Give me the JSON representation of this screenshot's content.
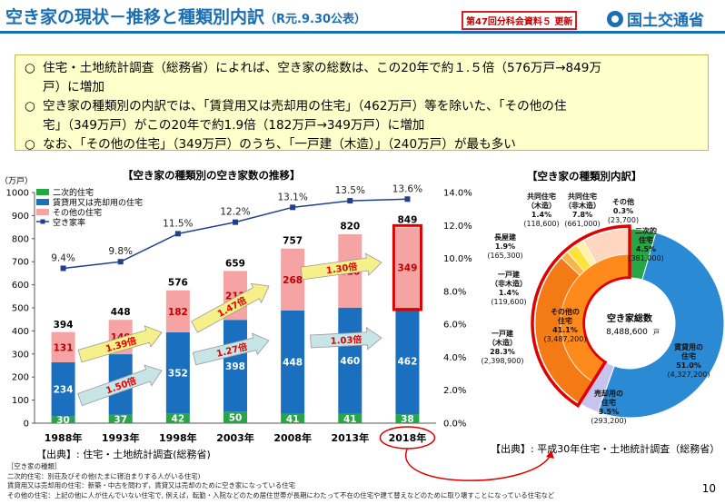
{
  "header": {
    "title": "空き家の現状－推移と種類別内訳",
    "title_note": "（R元.9.30公表）",
    "meeting_tag": "第47回分科会資料５ 更新",
    "org_name": "国土交通省"
  },
  "summary": {
    "mark": "○",
    "items": [
      {
        "line1": "住宅・土地統計調査（総務省）によれば、空き家の総数は、この20年で約１.５倍（576万戸→849万",
        "line2": "戸）に増加"
      },
      {
        "line1": "空き家の種類別の内訳では、「賃貸用又は売却用の住宅」（462万戸）等を除いた、「その他の住",
        "line2": "宅」（349万戸）がこの20年で約1.9倍（182万戸→349万戸）に増加"
      },
      {
        "line1": "なお、「その他の住宅」（349万戸）のうち、「一戸建（木造）」（240万戸）が最も多い",
        "line2": ""
      }
    ]
  },
  "left_chart": {
    "title": "【空き家の種類別の空き家数の推移】",
    "y_unit": "（万戸）",
    "source": "【出典】: 住宅・土地統計調査(総務省)"
  },
  "right_chart": {
    "title": "【空き家の種類別内訳】",
    "center_label": "空き家総数",
    "center_value": "8,488,600",
    "center_unit": "戸",
    "source": "【出典】: 平成30年住宅・土地統計調査（総務省）"
  },
  "notes": {
    "heading": "［空き家の種類］",
    "lines": [
      "二次的住宅：別荘及びその他(たまに寝泊まりする人がいる住宅)",
      "賃貸用又は売却用の住宅：新築・中古を問わず，賃貸又は売却のために空き家になっている住宅",
      "その他の住宅：上記の他に人が住んでいない住宅で, 例えば，転勤・入院などのため居住世帯が長期にわたって不在の住宅や建て替えなどのために取り壊すことになっている住宅など"
    ]
  },
  "page_number": "10",
  "colors": {
    "secondary": "#26a644",
    "rental": "#1a6fbe",
    "other": "#f6a3a3",
    "rate_line": "#1f3f8f",
    "title_blue": "#1a6fb4",
    "highlight_red": "#e00000",
    "arrow_yellow": "#f6f08a",
    "arrow_teal": "#c7e4e6"
  },
  "chart_data": [
    {
      "type": "bar",
      "stacked": true,
      "categories": [
        "1988年",
        "1993年",
        "1998年",
        "2003年",
        "2008年",
        "2013年",
        "2018年"
      ],
      "series": [
        {
          "name": "二次的住宅",
          "values": [
            30,
            37,
            42,
            50,
            41,
            41,
            38
          ],
          "color": "#26a644"
        },
        {
          "name": "賃貸用又は売却用の住宅",
          "values": [
            234,
            262,
            352,
            398,
            448,
            460,
            462
          ],
          "color": "#1a6fbe"
        },
        {
          "name": "その他の住宅",
          "values": [
            131,
            149,
            182,
            212,
            268,
            318,
            349
          ],
          "color": "#f6a3a3"
        }
      ],
      "totals": [
        394,
        448,
        576,
        659,
        757,
        820,
        849
      ],
      "line_series": {
        "name": "空き家率",
        "values": [
          9.4,
          9.8,
          11.5,
          12.2,
          13.1,
          13.5,
          13.6
        ],
        "labels": [
          "9.4%",
          "9.8%",
          "11.5%",
          "12.2%",
          "13.1%",
          "13.5%",
          "13.6%"
        ]
      },
      "ylim": [
        0,
        1000
      ],
      "yticks": [
        0,
        100,
        200,
        300,
        400,
        500,
        600,
        700,
        800,
        900,
        1000
      ],
      "y2lim": [
        0,
        14
      ],
      "y2ticks": [
        "0.0%",
        "2.0%",
        "4.0%",
        "6.0%",
        "8.0%",
        "10.0%",
        "12.0%",
        "14.0%"
      ],
      "annotations": [
        "1.50倍",
        "1.27倍",
        "1.03倍",
        "1.39倍",
        "1.47倍",
        "1.30倍"
      ],
      "legend": "top-left"
    },
    {
      "type": "pie",
      "labels": [
        "二次的住宅",
        "賃貸用の住宅",
        "売却用の住宅",
        "その他の住宅",
        "一戸建（木造）",
        "一戸建（非木造）",
        "長屋建",
        "共同住宅（木造）",
        "共同住宅（非木造）",
        "その他"
      ],
      "values": [
        381000,
        4327200,
        293200,
        3487200,
        2398900,
        119600,
        165300,
        118600,
        661000,
        23700
      ],
      "display": [
        {
          "name": "二次的住宅",
          "pct": "4.5%",
          "count": "(381,000)"
        },
        {
          "name": "賃貸用の住宅",
          "pct": "51.0%",
          "count": "(4,327,200)"
        },
        {
          "name": "売却用の住宅",
          "pct": "3.5%",
          "count": "(293,200)"
        },
        {
          "name": "その他の住宅",
          "pct": "41.1%",
          "count": "(3,487,200)"
        },
        {
          "name": "一戸建（木造）",
          "pct": "28.3%",
          "count": "(2,398,900)"
        },
        {
          "name": "一戸建（非木造）",
          "pct": "1.4%",
          "count": "(119,600)"
        },
        {
          "name": "長屋建",
          "pct": "1.9%",
          "count": "(165,300)"
        },
        {
          "name": "共同住宅（木造）",
          "pct": "1.4%",
          "count": "(118,600)"
        },
        {
          "name": "共同住宅（非木造）",
          "pct": "7.8%",
          "count": "(661,000)"
        },
        {
          "name": "その他",
          "pct": "0.3%",
          "count": "(23,700)"
        }
      ]
    }
  ]
}
